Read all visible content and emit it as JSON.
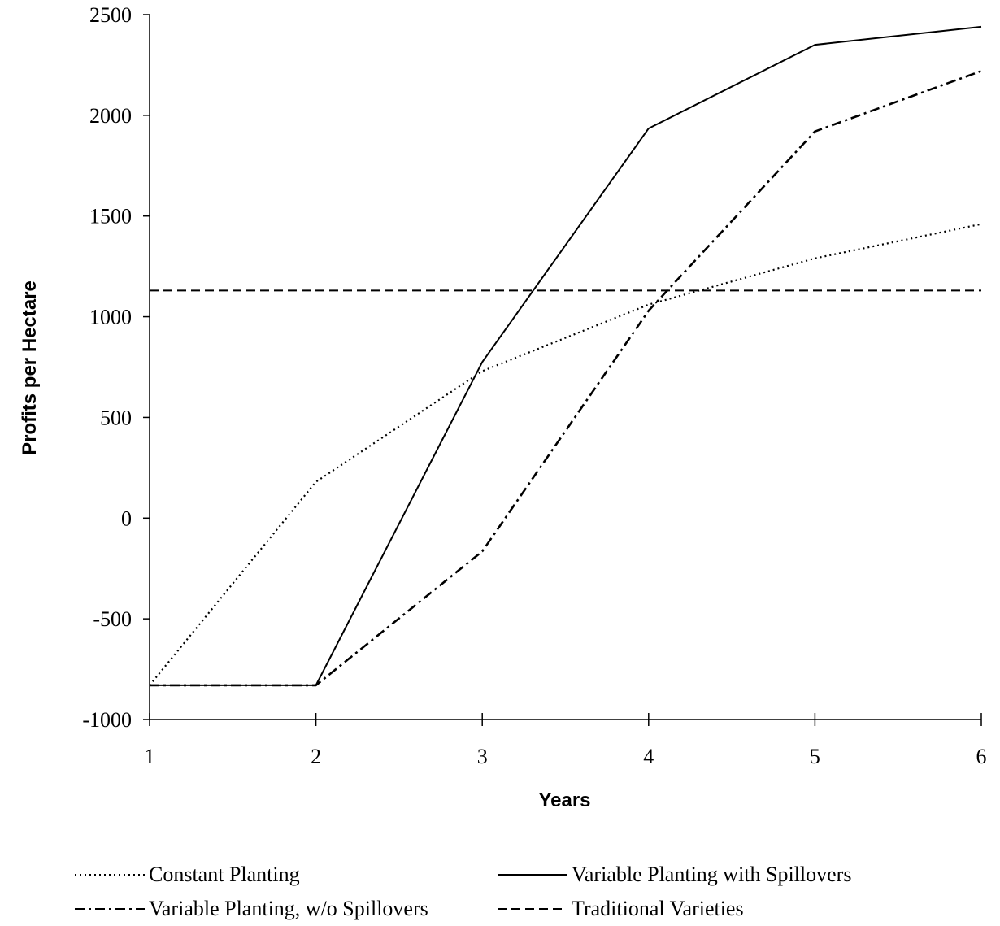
{
  "chart_data": {
    "type": "line",
    "title": "",
    "xlabel": "Years",
    "ylabel": "Profits per Hectare",
    "x": [
      1,
      2,
      3,
      4,
      5,
      6
    ],
    "xlim": [
      1,
      6
    ],
    "ylim": [
      -1000,
      2500
    ],
    "yticks": [
      "2500",
      "2000",
      "1500",
      "1000",
      "500",
      "0",
      "-500",
      "-1000"
    ],
    "xticks": [
      "1",
      "2",
      "3",
      "4",
      "5",
      "6"
    ],
    "grid": false,
    "legend_position": "bottom",
    "series": [
      {
        "name": "Constant Planting",
        "style": "dotted",
        "color": "#000000",
        "values": [
          -830,
          180,
          730,
          1060,
          1290,
          1460
        ]
      },
      {
        "name": "Variable Planting with Spillovers",
        "style": "solid",
        "color": "#000000",
        "values": [
          -830,
          -830,
          775,
          1935,
          2350,
          2440
        ]
      },
      {
        "name": "Variable Planting, w/o Spillovers",
        "style": "dashdot",
        "color": "#000000",
        "values": [
          -830,
          -830,
          -165,
          1030,
          1920,
          2220
        ]
      },
      {
        "name": "Traditional Varieties",
        "style": "dashed",
        "color": "#000000",
        "values": [
          1130,
          1130,
          1130,
          1130,
          1130,
          1130
        ]
      }
    ]
  }
}
